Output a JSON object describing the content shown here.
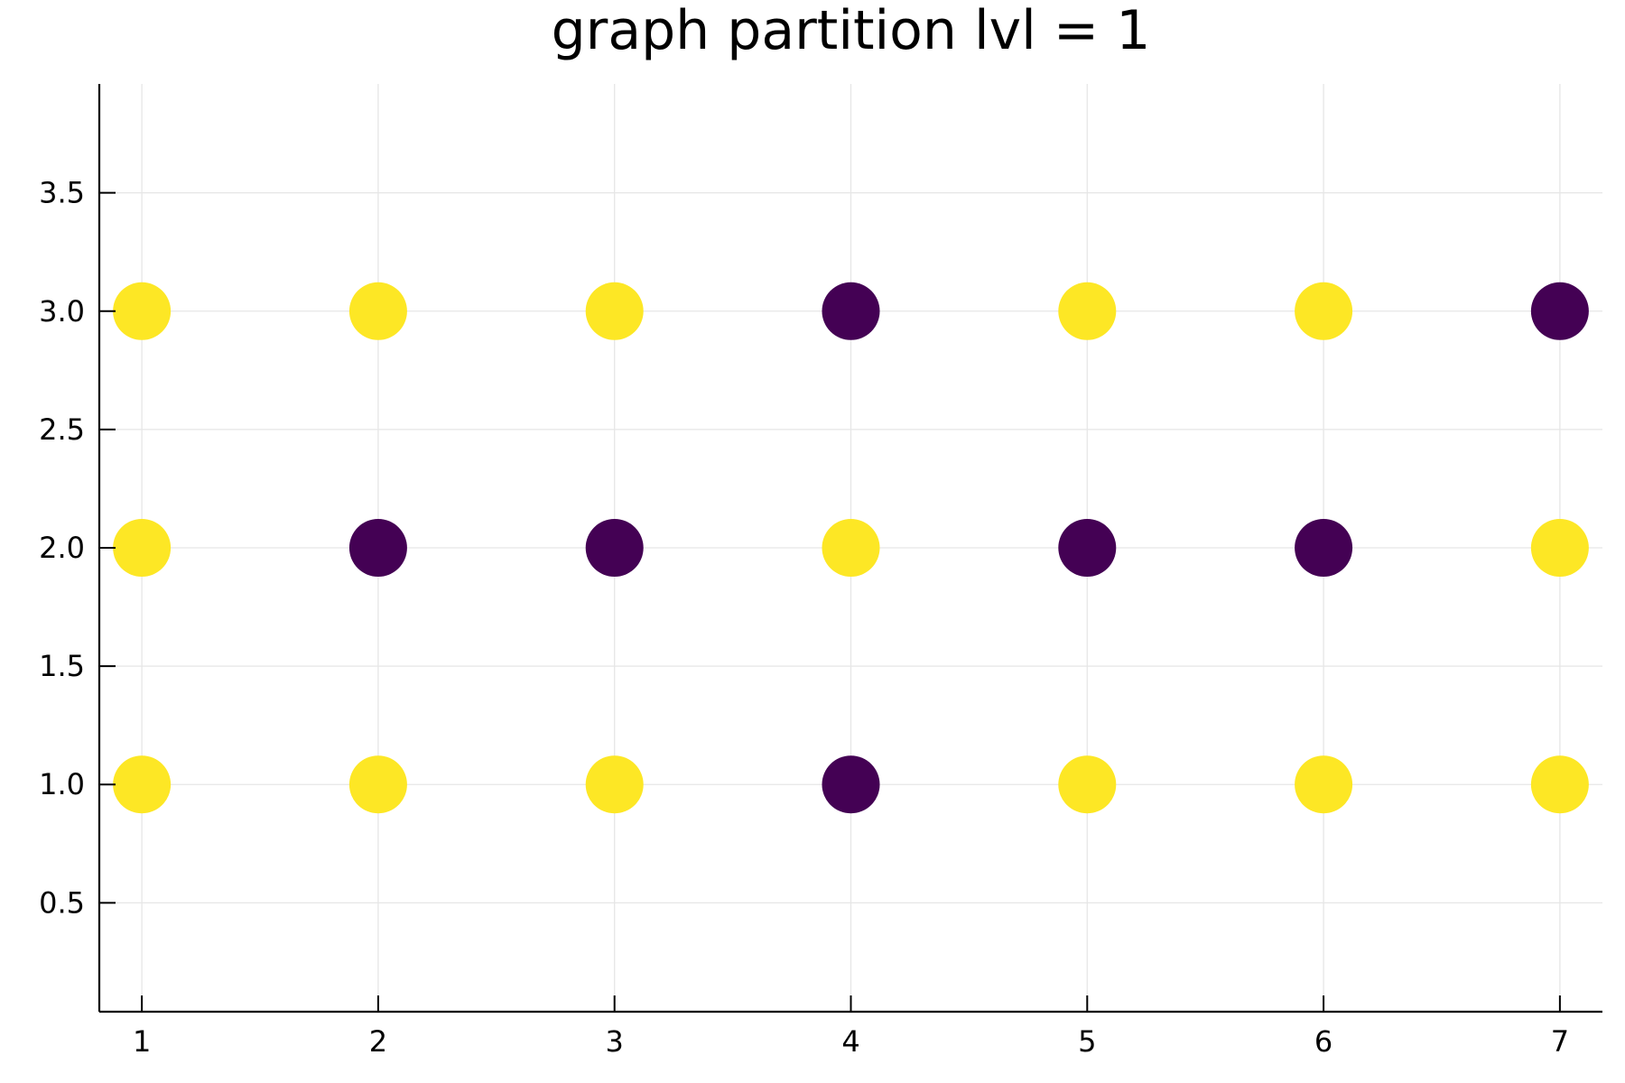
{
  "chart_data": {
    "type": "scatter",
    "title": "graph partition lvl = 1",
    "xlabel": "",
    "ylabel": "",
    "xlim": [
      0.82,
      7.18
    ],
    "ylim": [
      0.04,
      3.96
    ],
    "xticks": [
      1,
      2,
      3,
      4,
      5,
      6,
      7
    ],
    "xtick_labels": [
      "1",
      "2",
      "3",
      "4",
      "5",
      "6",
      "7"
    ],
    "yticks": [
      0.5,
      1.0,
      1.5,
      2.0,
      2.5,
      3.0,
      3.5
    ],
    "ytick_labels": [
      "0.5",
      "1.0",
      "1.5",
      "2.0",
      "2.5",
      "3.0",
      "3.5"
    ],
    "grid": true,
    "legend": "none",
    "class_colors": {
      "0": "#440154",
      "1": "#fde725"
    },
    "points": [
      {
        "x": 1,
        "y": 3,
        "class": 1
      },
      {
        "x": 2,
        "y": 3,
        "class": 1
      },
      {
        "x": 3,
        "y": 3,
        "class": 1
      },
      {
        "x": 4,
        "y": 3,
        "class": 0
      },
      {
        "x": 5,
        "y": 3,
        "class": 1
      },
      {
        "x": 6,
        "y": 3,
        "class": 1
      },
      {
        "x": 7,
        "y": 3,
        "class": 0
      },
      {
        "x": 1,
        "y": 2,
        "class": 1
      },
      {
        "x": 2,
        "y": 2,
        "class": 0
      },
      {
        "x": 3,
        "y": 2,
        "class": 0
      },
      {
        "x": 4,
        "y": 2,
        "class": 1
      },
      {
        "x": 5,
        "y": 2,
        "class": 0
      },
      {
        "x": 6,
        "y": 2,
        "class": 0
      },
      {
        "x": 7,
        "y": 2,
        "class": 1
      },
      {
        "x": 1,
        "y": 1,
        "class": 1
      },
      {
        "x": 2,
        "y": 1,
        "class": 1
      },
      {
        "x": 3,
        "y": 1,
        "class": 1
      },
      {
        "x": 4,
        "y": 1,
        "class": 0
      },
      {
        "x": 5,
        "y": 1,
        "class": 1
      },
      {
        "x": 6,
        "y": 1,
        "class": 1
      },
      {
        "x": 7,
        "y": 1,
        "class": 1
      }
    ]
  }
}
